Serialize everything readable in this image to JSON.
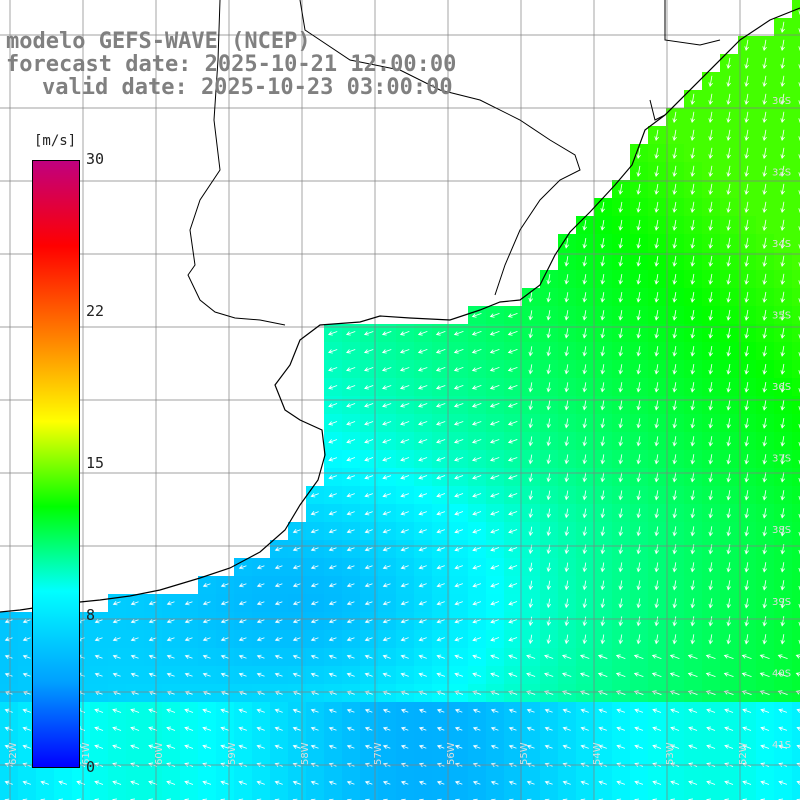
{
  "title": {
    "line1": "modelo GEFS-WAVE (NCEP)",
    "line2": "forecast date: 2025-10-21 12:00:00",
    "line3": "valid date: 2025-10-23 03:00:00"
  },
  "colorbar": {
    "unit": "[m/s]",
    "ticks": [
      "30",
      "22",
      "15",
      "8",
      "0"
    ],
    "tick_values": [
      30,
      22,
      15,
      8,
      0
    ],
    "range": [
      0,
      30
    ],
    "colors": [
      "#0000ff",
      "#00a0ff",
      "#00ffff",
      "#00ff00",
      "#ffff00",
      "#ff8000",
      "#ff0000",
      "#c0007f"
    ]
  },
  "map": {
    "variable": "wind speed",
    "lat_labels": [
      "30S",
      "32S",
      "34S",
      "35S",
      "36S",
      "37S",
      "38S",
      "39S",
      "40S",
      "41S"
    ],
    "lon_labels": [
      "62W",
      "61W",
      "60W",
      "59W",
      "58W",
      "57W",
      "56W",
      "55W",
      "54W",
      "53W",
      "52W"
    ],
    "land_color": "#ffffff",
    "grid_color": "#808080",
    "coast_color": "#000000",
    "arrow_color": "#ffffff"
  }
}
